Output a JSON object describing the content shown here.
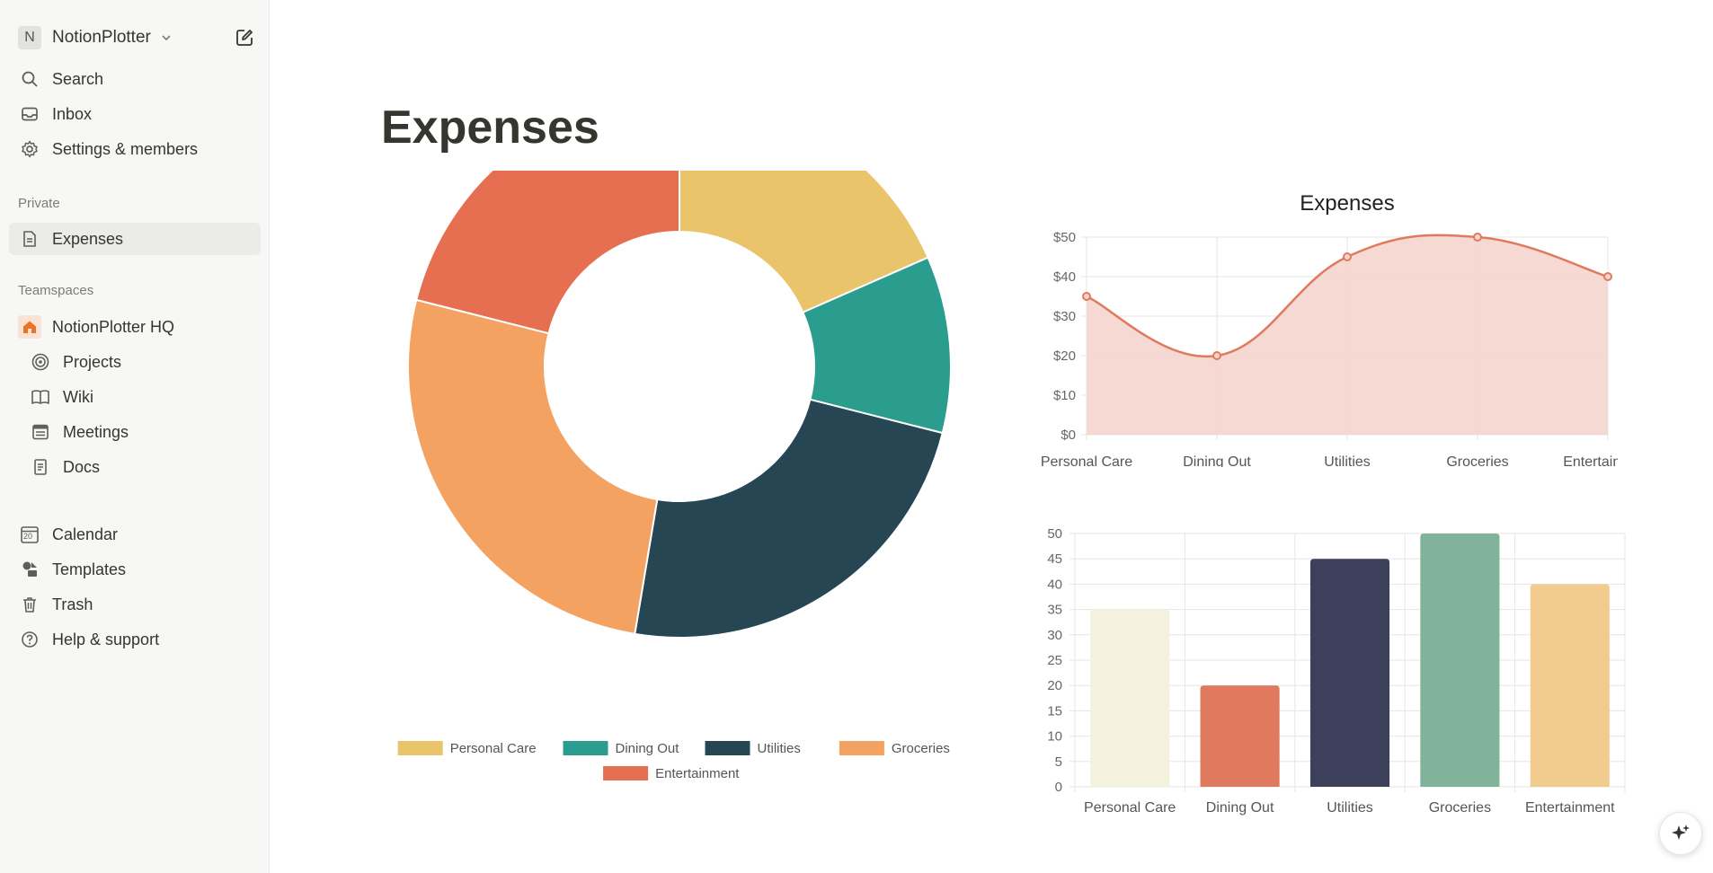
{
  "sidebar": {
    "workspace_badge": "N",
    "workspace_name": "NotionPlotter",
    "top_items": [
      {
        "label": "Search",
        "icon": "search-icon"
      },
      {
        "label": "Inbox",
        "icon": "inbox-icon"
      },
      {
        "label": "Settings & members",
        "icon": "gear-icon"
      }
    ],
    "private_label": "Private",
    "private_items": [
      {
        "label": "Expenses",
        "icon": "page-icon"
      }
    ],
    "teamspaces_label": "Teamspaces",
    "teamspace": {
      "label": "NotionPlotter HQ",
      "icon": "home-icon"
    },
    "teamspace_items": [
      {
        "label": "Projects",
        "icon": "target-icon"
      },
      {
        "label": "Wiki",
        "icon": "book-icon"
      },
      {
        "label": "Meetings",
        "icon": "calendar-list-icon"
      },
      {
        "label": "Docs",
        "icon": "doc-icon"
      }
    ],
    "bottom_items": [
      {
        "label": "Calendar",
        "icon": "calendar-icon",
        "badge": "20"
      },
      {
        "label": "Templates",
        "icon": "templates-icon"
      },
      {
        "label": "Trash",
        "icon": "trash-icon"
      },
      {
        "label": "Help & support",
        "icon": "help-icon"
      }
    ]
  },
  "page": {
    "title": "Expenses"
  },
  "colors": {
    "doughnut": [
      "#e9c46a",
      "#2a9d8f",
      "#264653",
      "#f4a261",
      "#e76f51"
    ],
    "line": "#e07a5f",
    "line_fill": "#f5d5cd",
    "bars": [
      "#f4f1de",
      "#e07a5f",
      "#3d405b",
      "#81b29a",
      "#f2cc8f"
    ]
  },
  "chart_data": [
    {
      "type": "doughnut",
      "categories": [
        "Personal Care",
        "Dining Out",
        "Utilities",
        "Groceries",
        "Entertainment"
      ],
      "values": [
        35,
        20,
        45,
        50,
        40
      ],
      "title": "",
      "legend": "bottom"
    },
    {
      "type": "line",
      "title": "Expenses",
      "categories": [
        "Personal Care",
        "Dining Out",
        "Utilities",
        "Groceries",
        "Entertainment"
      ],
      "values": [
        35,
        20,
        45,
        50,
        40
      ],
      "ylim": [
        0,
        50
      ],
      "yticks": [
        "$0",
        "$10",
        "$20",
        "$30",
        "$40",
        "$50"
      ],
      "fill": true,
      "grid": true
    },
    {
      "type": "bar",
      "title": "",
      "categories": [
        "Personal Care",
        "Dining Out",
        "Utilities",
        "Groceries",
        "Entertainment"
      ],
      "values": [
        35,
        20,
        45,
        50,
        40
      ],
      "ylim": [
        0,
        50
      ],
      "yticks": [
        "0",
        "5",
        "10",
        "15",
        "20",
        "25",
        "30",
        "35",
        "40",
        "45",
        "50"
      ],
      "grid": true
    }
  ]
}
